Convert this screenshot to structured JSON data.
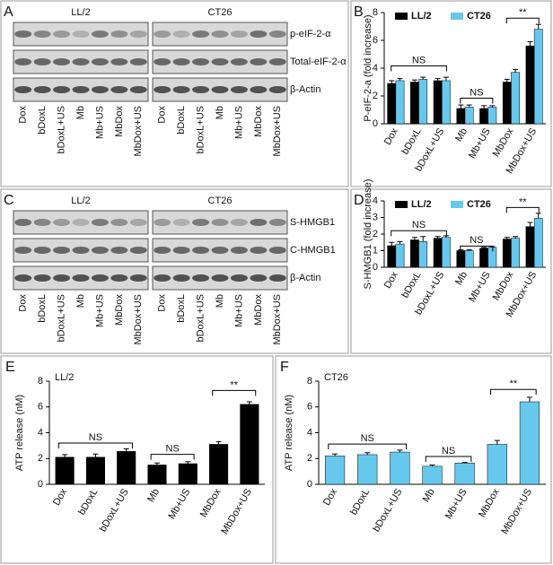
{
  "panels": [
    {
      "label": "A",
      "groups": [
        "LL/2",
        "CT26"
      ],
      "rows": [
        "p-eIF-2-α",
        "Total-eIF-2-α",
        "β-Actin"
      ],
      "lanes": [
        "Dox",
        "bDoxL",
        "bDoxL+US",
        "Mb",
        "Mb+US",
        "MbDox",
        "MbDox+US"
      ]
    },
    {
      "label": "C",
      "groups": [
        "LL/2",
        "CT26"
      ],
      "rows": [
        "S-HMGB1",
        "C-HMGB1",
        "β-Actin"
      ],
      "lanes": [
        "Dox",
        "bDoxL",
        "bDoxL+US",
        "Mb",
        "Mb+US",
        "MbDox",
        "MbDox+US"
      ]
    }
  ],
  "chart_data": [
    {
      "type": "bar",
      "label": "B",
      "y_label": "P-eIF-2-a (fold increase)",
      "categories": [
        "Dox",
        "bDoxL",
        "bDoxL+US",
        "Mb",
        "Mb+US",
        "MbDox",
        "MbDox+US"
      ],
      "series": [
        {
          "name": "LL/2",
          "color": "#000000",
          "values": [
            2.9,
            3.0,
            3.1,
            1.1,
            1.1,
            3.0,
            5.6
          ],
          "errors": [
            0.2,
            0.15,
            0.15,
            0.25,
            0.2,
            0.2,
            0.3
          ]
        },
        {
          "name": "CT26",
          "color": "#67c8ee",
          "values": [
            3.1,
            3.2,
            3.1,
            1.2,
            1.2,
            3.7,
            6.8
          ],
          "errors": [
            0.15,
            0.15,
            0.25,
            0.15,
            0.1,
            0.2,
            0.35
          ]
        }
      ],
      "ylim": [
        0,
        8
      ],
      "yticks": [
        0,
        2,
        4,
        6,
        8
      ],
      "legend": "top",
      "annotations": [
        "NS",
        "NS",
        "**"
      ]
    },
    {
      "type": "bar",
      "label": "D",
      "y_label": "S-HMGB1 (fold increase)",
      "categories": [
        "Dox",
        "bDoxL",
        "bDoxL+US",
        "Mb",
        "Mb+US",
        "MbDox",
        "MbDox+US"
      ],
      "series": [
        {
          "name": "LL/2",
          "color": "#000000",
          "values": [
            1.3,
            1.65,
            1.75,
            1.0,
            1.15,
            1.7,
            2.45
          ],
          "errors": [
            0.2,
            0.15,
            0.1,
            0.05,
            0.05,
            0.1,
            0.25
          ]
        },
        {
          "name": "CT26",
          "color": "#67c8ee",
          "values": [
            1.4,
            1.55,
            1.8,
            1.0,
            1.2,
            1.75,
            2.95
          ],
          "errors": [
            0.15,
            0.3,
            0.1,
            0.05,
            0.05,
            0.1,
            0.3
          ]
        }
      ],
      "ylim": [
        0,
        4
      ],
      "yticks": [
        0,
        1,
        2,
        3,
        4
      ],
      "legend": "top",
      "annotations": [
        "NS",
        "NS",
        "**"
      ]
    },
    {
      "type": "bar",
      "label": "E",
      "title": "LL/2",
      "y_label": "ATP release (nM)",
      "categories": [
        "Dox",
        "bDoxL",
        "bDoxL+US",
        "Mb",
        "Mb+US",
        "MbDox",
        "MbDox+US"
      ],
      "series": [
        {
          "name": "LL/2",
          "color": "#000000",
          "values": [
            2.1,
            2.1,
            2.55,
            1.5,
            1.6,
            3.1,
            6.2
          ],
          "errors": [
            0.2,
            0.25,
            0.2,
            0.15,
            0.15,
            0.2,
            0.2
          ]
        }
      ],
      "ylim": [
        0,
        8
      ],
      "yticks": [
        0,
        2,
        4,
        6,
        8
      ],
      "annotations": [
        "NS",
        "NS",
        "**"
      ]
    },
    {
      "type": "bar",
      "label": "F",
      "title": "CT26",
      "y_label": "ATP release (nM)",
      "categories": [
        "Dox",
        "bDoxL",
        "bDoxL+US",
        "Mb",
        "Mb+US",
        "MbDox",
        "MbDox+US"
      ],
      "series": [
        {
          "name": "CT26",
          "color": "#67c8ee",
          "values": [
            2.2,
            2.3,
            2.5,
            1.4,
            1.65,
            3.1,
            6.4
          ],
          "errors": [
            0.15,
            0.15,
            0.15,
            0.1,
            0.05,
            0.3,
            0.35
          ]
        }
      ],
      "ylim": [
        0,
        8
      ],
      "yticks": [
        0,
        2,
        4,
        6,
        8
      ],
      "annotations": [
        "NS",
        "NS",
        "**"
      ]
    }
  ]
}
